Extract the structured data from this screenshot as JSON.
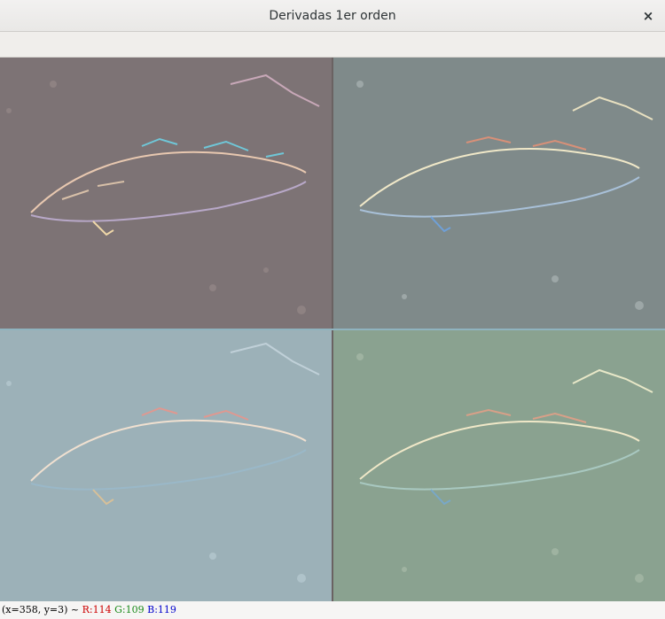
{
  "window": {
    "title": "Derivadas 1er orden",
    "close_glyph": "×"
  },
  "image_panels": [
    {
      "name": "top-left",
      "tint": "#7d7375",
      "icon": "fish-derivative-image"
    },
    {
      "name": "top-right",
      "tint": "#7f8a8a",
      "icon": "fish-derivative-image"
    },
    {
      "name": "bottom-left",
      "tint": "#9cb1b8",
      "icon": "fish-derivative-image"
    },
    {
      "name": "bottom-right",
      "tint": "#8aa290",
      "icon": "fish-derivative-image"
    }
  ],
  "status": {
    "coords": "(x=358, y=3) ~ ",
    "r": "R:114",
    "g": "G:109",
    "b": "B:119"
  }
}
